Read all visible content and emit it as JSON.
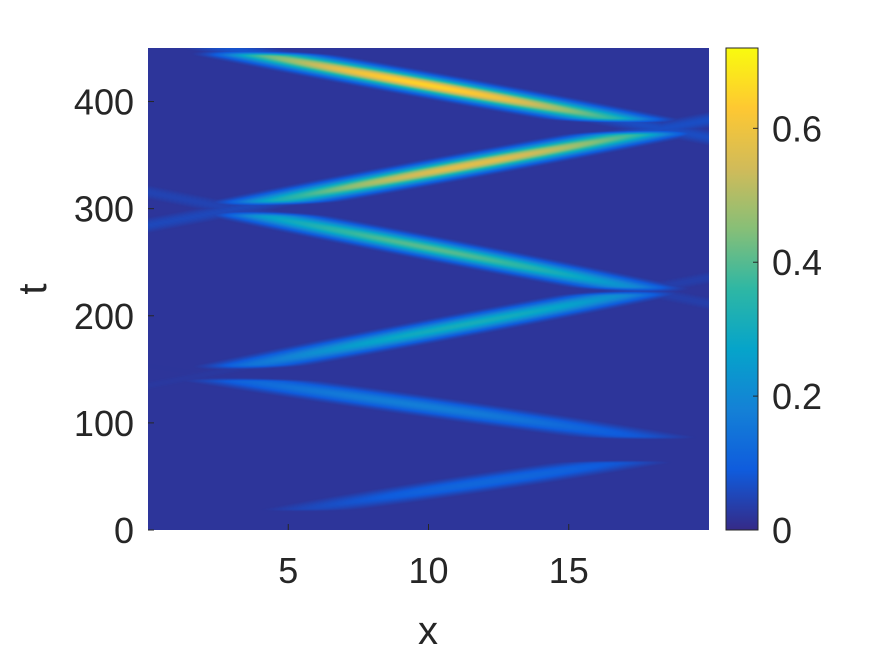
{
  "chart_data": {
    "type": "heatmap",
    "colormap": "parula",
    "xlabel": "x",
    "ylabel": "t",
    "xlim": [
      0,
      20
    ],
    "ylim": [
      0,
      450
    ],
    "xticks": [
      5,
      10,
      15
    ],
    "yticks": [
      0,
      100,
      200,
      300,
      400
    ],
    "xtick_labels": [
      "5",
      "10",
      "15"
    ],
    "ytick_labels": [
      "0",
      "100",
      "200",
      "300",
      "400"
    ],
    "colorbar": {
      "range": [
        0,
        0.72
      ],
      "ticks": [
        0,
        0.2,
        0.4,
        0.6
      ],
      "tick_labels": [
        "0",
        "0.2",
        "0.4",
        "0.6"
      ]
    },
    "background_value": 0.02,
    "grid": false,
    "ridges": [
      {
        "t": [
          20,
          62
        ],
        "x": [
          6.0,
          16.3
        ],
        "peak": [
          0.09,
          0.14
        ]
      },
      {
        "t": [
          88,
          138
        ],
        "x": [
          17.0,
          4.0
        ],
        "peak": [
          0.14,
          0.2
        ]
      },
      {
        "t": [
          155,
          218
        ],
        "x": [
          4.0,
          16.5
        ],
        "peak": [
          0.25,
          0.36
        ]
      },
      {
        "t": [
          228,
          292
        ],
        "x": [
          16.8,
          4.5
        ],
        "peak": [
          0.36,
          0.44
        ]
      },
      {
        "t": [
          308,
          368
        ],
        "x": [
          4.8,
          17.0
        ],
        "peak": [
          0.52,
          0.62
        ]
      },
      {
        "t": [
          385,
          442
        ],
        "x": [
          16.2,
          4.5
        ],
        "peak": [
          0.6,
          0.7
        ]
      }
    ]
  }
}
